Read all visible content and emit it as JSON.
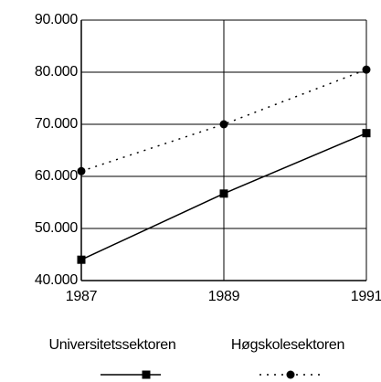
{
  "chart_data": {
    "type": "line",
    "x": [
      1987,
      1989,
      1991
    ],
    "series": [
      {
        "name": "Universitetssektoren",
        "color": "#000000",
        "linestyle": "solid",
        "marker": "square",
        "values": [
          44000,
          56700,
          68300
        ]
      },
      {
        "name": "Høgskolesektoren",
        "color": "#000000",
        "linestyle": "dotted",
        "marker": "circle",
        "values": [
          61000,
          70000,
          80500
        ]
      }
    ],
    "xlim": [
      1987,
      1991
    ],
    "xticks": [
      1987,
      1989,
      1991
    ],
    "ylim": [
      40000,
      90000
    ],
    "yticks": [
      {
        "value": 40000,
        "label": "40.000"
      },
      {
        "value": 50000,
        "label": "50.000"
      },
      {
        "value": 60000,
        "label": "60.000"
      },
      {
        "value": 70000,
        "label": "70.000"
      },
      {
        "value": 80000,
        "label": "80.000"
      },
      {
        "value": 90000,
        "label": "90.000"
      }
    ],
    "grid": true,
    "legend": "bottom"
  }
}
